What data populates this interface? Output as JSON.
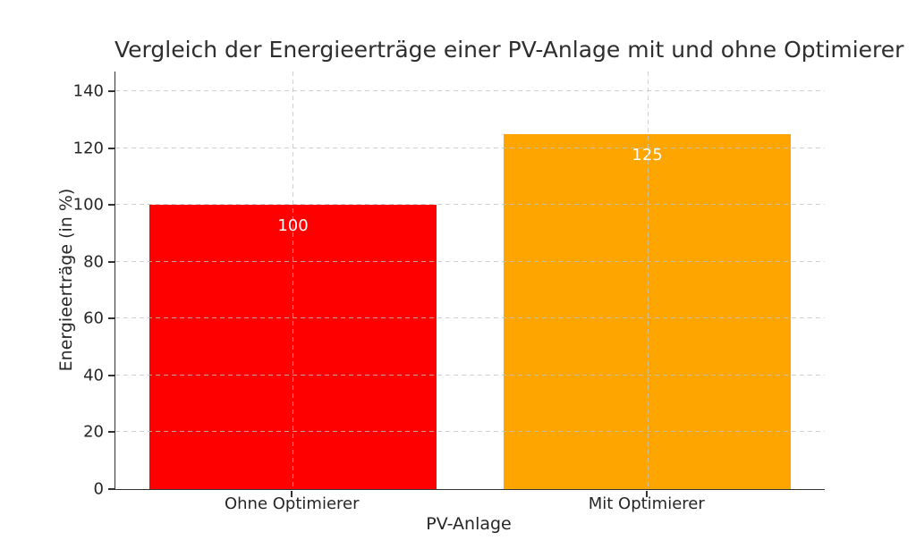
{
  "chart_data": {
    "type": "bar",
    "title": "Vergleich der Energieerträge einer PV-Anlage mit und ohne Optimierer",
    "xlabel": "PV-Anlage",
    "ylabel": "Energieerträge (in %)",
    "categories": [
      "Ohne Optimierer",
      "Mit Optimierer"
    ],
    "values": [
      100,
      125
    ],
    "bar_labels": [
      "100",
      "125"
    ],
    "series": [
      {
        "name": "Energieerträge",
        "values": [
          100,
          125
        ]
      }
    ],
    "bar_colors": [
      "#ff0000",
      "#ffa500"
    ],
    "value_label_color": "#ffffff",
    "yticks": [
      0,
      20,
      40,
      60,
      80,
      100,
      120,
      140
    ],
    "ylim": [
      0,
      147
    ],
    "grid": true,
    "grid_style": "dashed",
    "grid_color": "#c3c3c3",
    "axis_color": "#333333",
    "legend": "none",
    "background_color": "#ffffff"
  }
}
